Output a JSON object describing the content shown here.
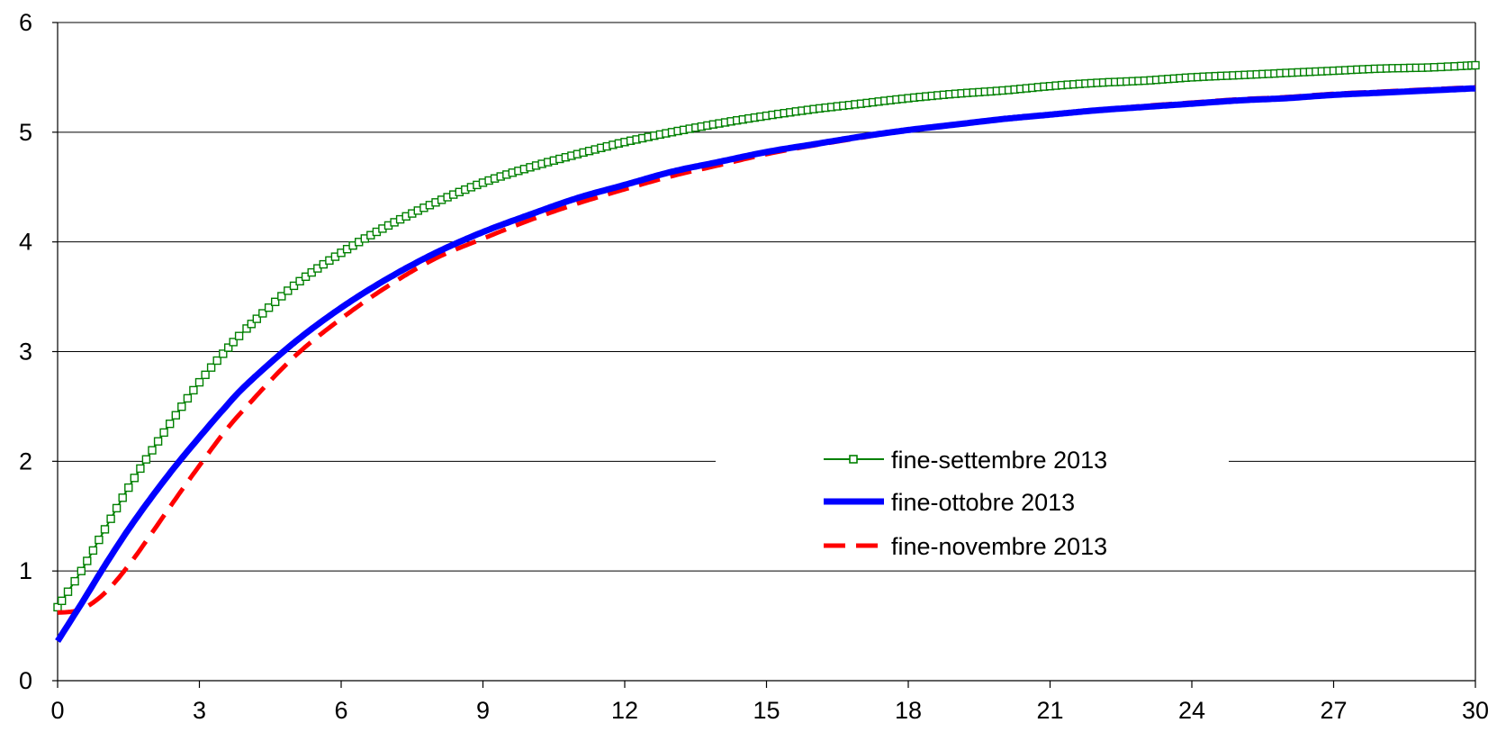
{
  "chart_data": {
    "type": "line",
    "title": "",
    "xlabel": "",
    "ylabel": "",
    "xlim": [
      0,
      30
    ],
    "ylim": [
      0,
      6
    ],
    "xticks": [
      0,
      3,
      6,
      9,
      12,
      15,
      18,
      21,
      24,
      27,
      30
    ],
    "yticks": [
      0,
      1,
      2,
      3,
      4,
      5,
      6
    ],
    "grid": "horizontal",
    "legend_position": "center-right",
    "series": [
      {
        "name": "fine-settembre 2013",
        "color": "#008000",
        "style": "solid-square-markers",
        "x": [
          0,
          0.5,
          1,
          1.5,
          2,
          2.5,
          3,
          3.5,
          4,
          5,
          6,
          7,
          8,
          9,
          10,
          11,
          12,
          13,
          14,
          15,
          16,
          17,
          18,
          19,
          20,
          21,
          22,
          23,
          24,
          25,
          26,
          27,
          28,
          29,
          30
        ],
        "y": [
          0.67,
          1.0,
          1.38,
          1.76,
          2.1,
          2.42,
          2.72,
          2.98,
          3.21,
          3.6,
          3.9,
          4.15,
          4.36,
          4.54,
          4.68,
          4.8,
          4.91,
          5.0,
          5.08,
          5.15,
          5.21,
          5.26,
          5.31,
          5.35,
          5.38,
          5.42,
          5.45,
          5.47,
          5.5,
          5.52,
          5.54,
          5.56,
          5.58,
          5.59,
          5.61
        ]
      },
      {
        "name": "fine-ottobre 2013",
        "color": "#0000ff",
        "style": "thick-solid",
        "x": [
          0,
          0.5,
          1,
          1.5,
          2,
          2.5,
          3,
          3.5,
          4,
          5,
          6,
          7,
          8,
          9,
          10,
          11,
          12,
          13,
          14,
          15,
          16,
          17,
          18,
          19,
          20,
          21,
          22,
          23,
          24,
          25,
          26,
          27,
          28,
          29,
          30
        ],
        "y": [
          0.36,
          0.7,
          1.05,
          1.38,
          1.68,
          1.96,
          2.22,
          2.47,
          2.7,
          3.08,
          3.4,
          3.67,
          3.9,
          4.09,
          4.25,
          4.4,
          4.52,
          4.64,
          4.73,
          4.82,
          4.89,
          4.96,
          5.02,
          5.07,
          5.12,
          5.16,
          5.2,
          5.23,
          5.26,
          5.29,
          5.31,
          5.34,
          5.36,
          5.38,
          5.4
        ]
      },
      {
        "name": "fine-novembre 2013",
        "color": "#ff0000",
        "style": "dashed",
        "x": [
          0,
          0.5,
          1,
          1.5,
          2,
          2.5,
          3,
          3.5,
          4,
          5,
          6,
          7,
          8,
          9,
          10,
          11,
          12,
          13,
          14,
          15,
          16,
          17,
          18,
          19,
          20,
          21,
          22,
          23,
          24,
          25,
          26,
          27,
          28,
          29,
          30
        ],
        "y": [
          0.62,
          0.65,
          0.8,
          1.05,
          1.35,
          1.66,
          1.96,
          2.25,
          2.5,
          2.95,
          3.3,
          3.6,
          3.85,
          4.03,
          4.2,
          4.35,
          4.48,
          4.6,
          4.7,
          4.8,
          4.88,
          4.95,
          5.02,
          5.07,
          5.12,
          5.16,
          5.2,
          5.24,
          5.27,
          5.3,
          5.32,
          5.35,
          5.37,
          5.39,
          5.41
        ]
      }
    ]
  }
}
